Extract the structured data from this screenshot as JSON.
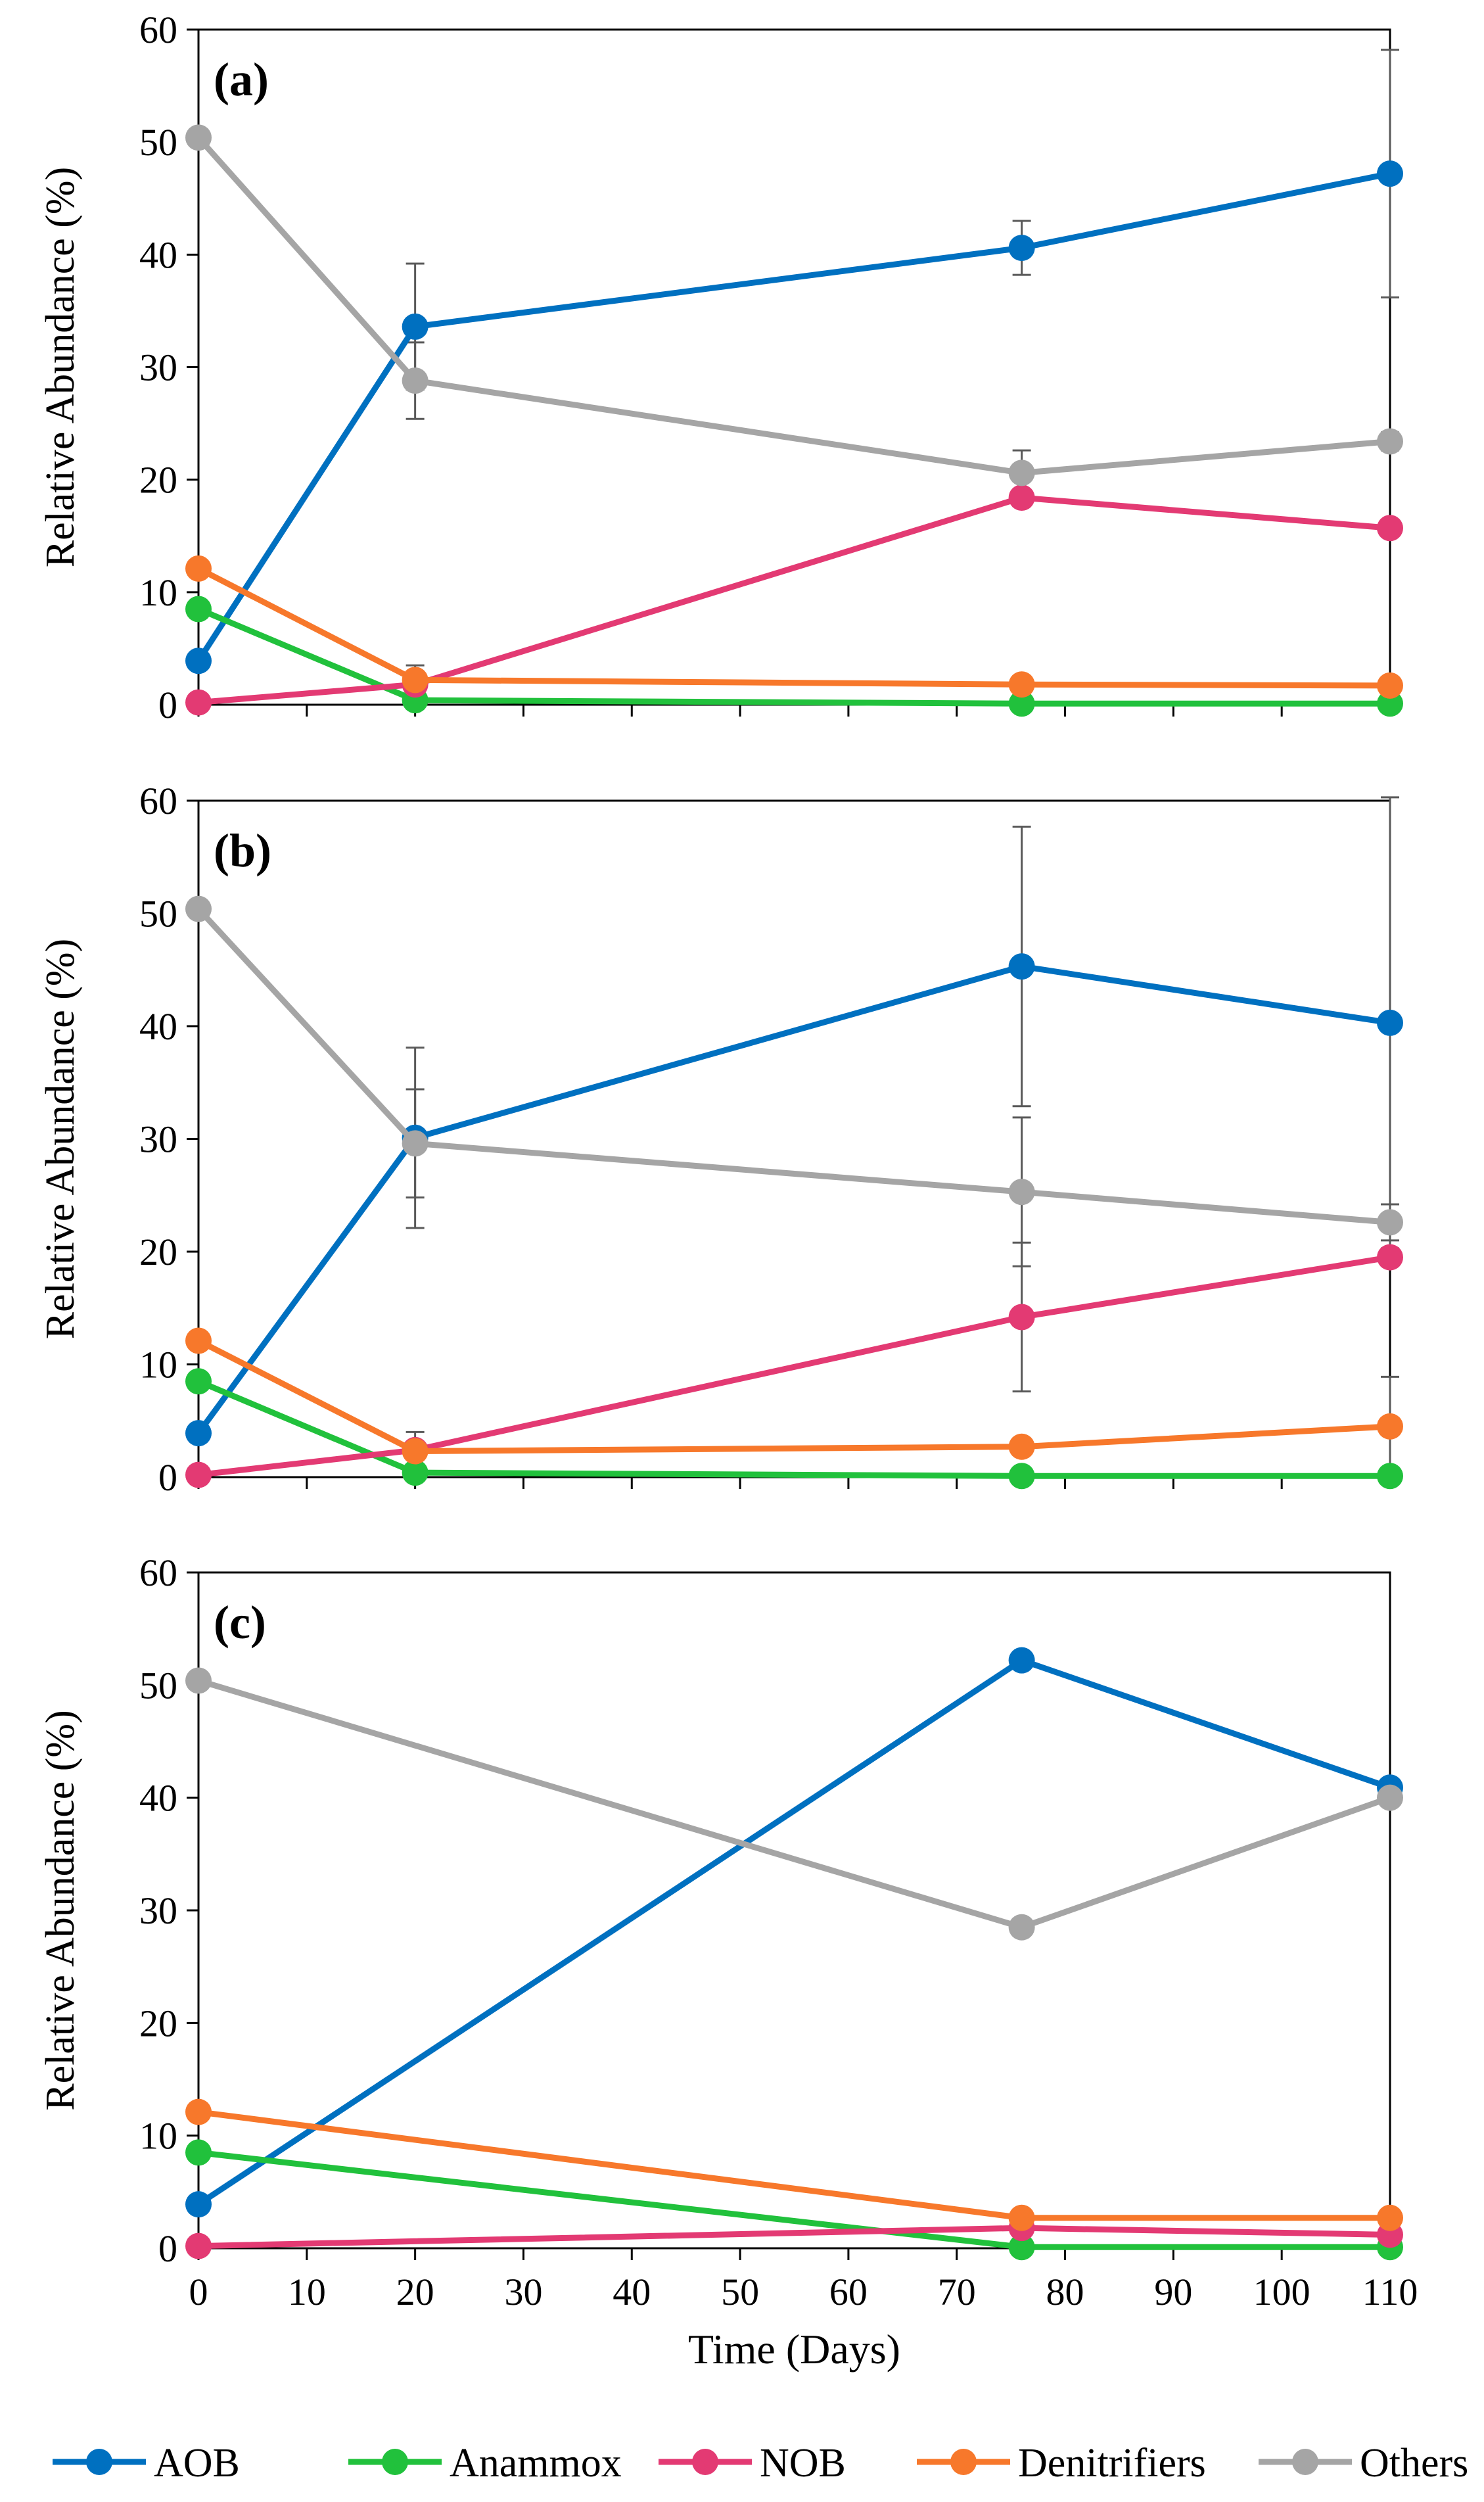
{
  "chart_data": [
    {
      "type": "line",
      "panel_label": "(a)",
      "ylabel": "Relative Abundance (%)",
      "ylim": [
        0,
        60
      ],
      "yticks": [
        0,
        10,
        20,
        30,
        40,
        50,
        60
      ],
      "xlim": [
        0,
        110
      ],
      "xticks": [
        0,
        10,
        20,
        30,
        40,
        50,
        60,
        70,
        80,
        90,
        100,
        110
      ],
      "x": [
        0,
        20,
        76,
        110
      ],
      "series": [
        {
          "name": "AOB",
          "color": "#0070C0",
          "values": [
            3.9,
            33.6,
            40.6,
            47.2
          ],
          "err": [
            0,
            5.6,
            2.4,
            11.0
          ]
        },
        {
          "name": "Anammox",
          "color": "#21C13C",
          "values": [
            8.5,
            0.4,
            0.1,
            0.1
          ],
          "err": [
            0,
            0,
            0,
            0
          ]
        },
        {
          "name": "NOB",
          "color": "#E33A73",
          "values": [
            0.2,
            1.8,
            18.4,
            15.7
          ],
          "err": [
            0,
            0,
            0,
            0
          ]
        },
        {
          "name": "Denitrifiers",
          "color": "#F7782B",
          "values": [
            12.1,
            2.2,
            1.8,
            1.7
          ],
          "err": [
            0,
            1.3,
            0,
            0
          ]
        },
        {
          "name": "Others",
          "color": "#A5A5A5",
          "values": [
            50.4,
            28.8,
            20.6,
            23.4
          ],
          "err": [
            0,
            3.4,
            2.0,
            0.8
          ]
        }
      ]
    },
    {
      "type": "line",
      "panel_label": "(b)",
      "ylabel": "Relative Abundance (%)",
      "ylim": [
        0,
        60
      ],
      "yticks": [
        0,
        10,
        20,
        30,
        40,
        50,
        60
      ],
      "xlim": [
        0,
        110
      ],
      "xticks": [
        0,
        10,
        20,
        30,
        40,
        50,
        60,
        70,
        80,
        90,
        100,
        110
      ],
      "x": [
        0,
        20,
        76,
        110
      ],
      "series": [
        {
          "name": "AOB",
          "color": "#0070C0",
          "values": [
            3.9,
            30.1,
            45.3,
            40.3
          ],
          "err": [
            0,
            8.0,
            12.4,
            20.0
          ]
        },
        {
          "name": "Anammox",
          "color": "#21C13C",
          "values": [
            8.5,
            0.4,
            0.1,
            0.1
          ],
          "err": [
            0,
            0,
            0,
            0
          ]
        },
        {
          "name": "NOB",
          "color": "#E33A73",
          "values": [
            0.2,
            2.4,
            14.2,
            19.5
          ],
          "err": [
            0,
            1.6,
            6.6,
            0
          ]
        },
        {
          "name": "Denitrifiers",
          "color": "#F7782B",
          "values": [
            12.1,
            2.3,
            2.7,
            4.5
          ],
          "err": [
            0,
            0,
            0,
            4.4
          ]
        },
        {
          "name": "Others",
          "color": "#A5A5A5",
          "values": [
            50.4,
            29.6,
            25.3,
            22.6
          ],
          "err": [
            0,
            4.8,
            6.6,
            1.6
          ]
        }
      ]
    },
    {
      "type": "line",
      "panel_label": "(c)",
      "ylabel": "Relative Abundance (%)",
      "ylim": [
        0,
        60
      ],
      "yticks": [
        0,
        10,
        20,
        30,
        40,
        50,
        60
      ],
      "xlim": [
        0,
        110
      ],
      "xticks": [
        0,
        10,
        20,
        30,
        40,
        50,
        60,
        70,
        80,
        90,
        100,
        110
      ],
      "xlabel": "Time (Days)",
      "x": [
        0,
        76,
        110
      ],
      "series": [
        {
          "name": "AOB",
          "color": "#0070C0",
          "values": [
            3.9,
            52.2,
            40.9
          ],
          "err": [
            0,
            0,
            0
          ]
        },
        {
          "name": "Anammox",
          "color": "#21C13C",
          "values": [
            8.5,
            0.1,
            0.1
          ],
          "err": [
            0,
            0,
            0
          ]
        },
        {
          "name": "NOB",
          "color": "#E33A73",
          "values": [
            0.2,
            1.8,
            1.2
          ],
          "err": [
            0,
            0,
            0
          ]
        },
        {
          "name": "Denitrifiers",
          "color": "#F7782B",
          "values": [
            12.1,
            2.7,
            2.7
          ],
          "err": [
            0,
            0,
            0
          ]
        },
        {
          "name": "Others",
          "color": "#A5A5A5",
          "values": [
            50.4,
            28.5,
            40.0
          ],
          "err": [
            0,
            0,
            0
          ]
        }
      ]
    }
  ],
  "legend": [
    {
      "name": "AOB",
      "color": "#0070C0"
    },
    {
      "name": "Anammox",
      "color": "#21C13C"
    },
    {
      "name": "NOB",
      "color": "#E33A73"
    },
    {
      "name": "Denitrifiers",
      "color": "#F7782B"
    },
    {
      "name": "Others",
      "color": "#A5A5A5"
    }
  ]
}
